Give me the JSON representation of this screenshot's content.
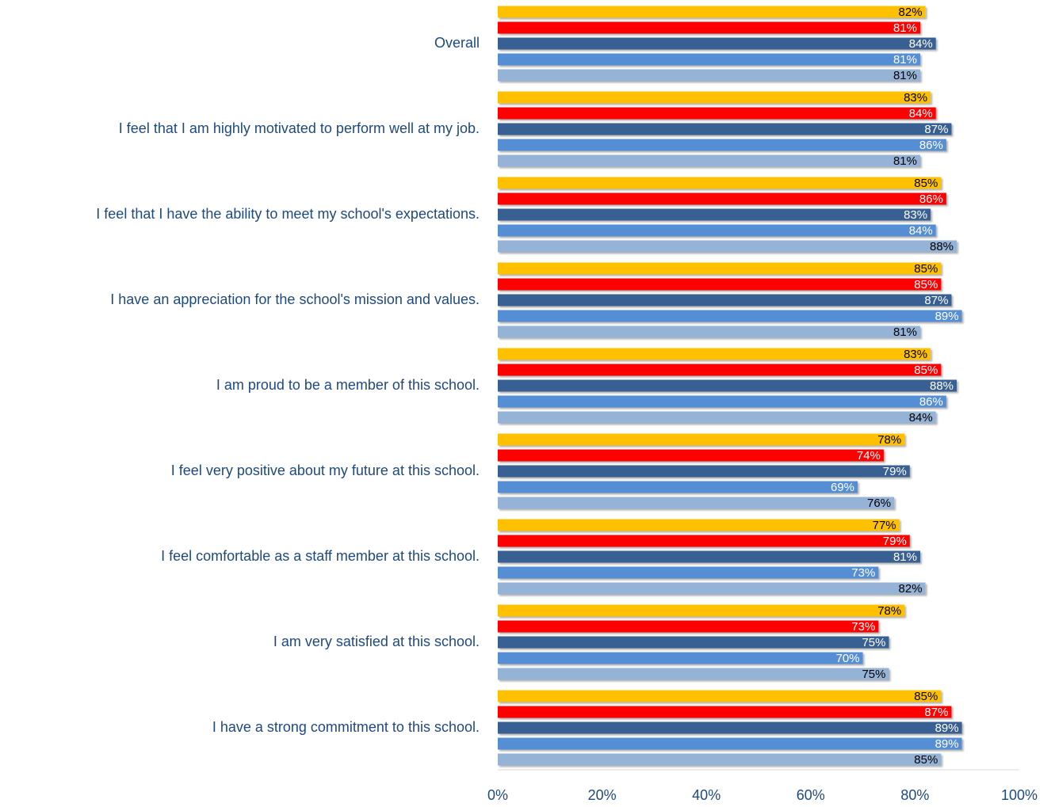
{
  "chart_data": {
    "type": "bar",
    "orientation": "horizontal",
    "categories": [
      "Overall",
      "I feel that I am highly motivated to perform well at my job.",
      "I feel that I have the ability to meet my school's expectations.",
      "I have an appreciation for the school's mission and values.",
      "I am proud to be a member of this school.",
      "I feel very positive about my future at this school.",
      "I feel comfortable as a staff member at this school.",
      "I am very satisfied at this school.",
      "I have a strong commitment to this school."
    ],
    "series": [
      {
        "color": "#FFC000",
        "label_color": "#000000",
        "values": [
          82,
          83,
          85,
          85,
          83,
          78,
          77,
          78,
          85
        ],
        "value_labels": [
          "82%",
          "83%",
          "85%",
          "85%",
          "83%",
          "78%",
          "77%",
          "78%",
          "85%"
        ]
      },
      {
        "color": "#FF0000",
        "label_color": "#FFFFFF",
        "values": [
          81,
          84,
          86,
          85,
          85,
          74,
          79,
          73,
          87
        ],
        "value_labels": [
          "81%",
          "84%",
          "86%",
          "85%",
          "85%",
          "74%",
          "79%",
          "73%",
          "87%"
        ]
      },
      {
        "color": "#376092",
        "label_color": "#FFFFFF",
        "values": [
          84,
          87,
          83,
          87,
          88,
          79,
          81,
          75,
          89
        ],
        "value_labels": [
          "84%",
          "87%",
          "83%",
          "87%",
          "88%",
          "79%",
          "81%",
          "75%",
          "89%"
        ]
      },
      {
        "color": "#558ED5",
        "label_color": "#FFFFFF",
        "values": [
          81,
          86,
          84,
          89,
          86,
          69,
          73,
          70,
          89
        ],
        "value_labels": [
          "81%",
          "86%",
          "84%",
          "89%",
          "86%",
          "69%",
          "73%",
          "70%",
          "89%"
        ]
      },
      {
        "color": "#95B3D7",
        "label_color": "#000000",
        "values": [
          81,
          81,
          88,
          81,
          84,
          76,
          82,
          75,
          85
        ],
        "value_labels": [
          "81%",
          "81%",
          "88%",
          "81%",
          "84%",
          "76%",
          "82%",
          "75%",
          "85%"
        ]
      }
    ],
    "xlim": [
      0,
      100
    ],
    "xticks": [
      {
        "value": 0,
        "label": "0%"
      },
      {
        "value": 20,
        "label": "20%"
      },
      {
        "value": 40,
        "label": "40%"
      },
      {
        "value": 60,
        "label": "60%"
      },
      {
        "value": 80,
        "label": "80%"
      },
      {
        "value": 100,
        "label": "100%"
      }
    ],
    "grid": false
  }
}
